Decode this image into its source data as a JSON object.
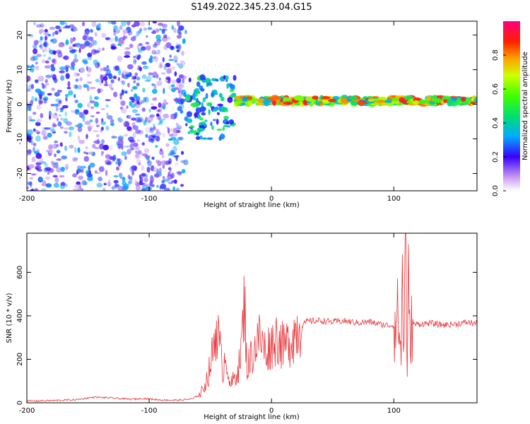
{
  "title": "S149.2022.345.23.04.G15",
  "chart_data": [
    {
      "type": "heatmap",
      "xlabel": "Height of straight line (km)",
      "ylabel": "Frequency (Hz)",
      "xlim": [
        -200,
        168
      ],
      "ylim": [
        -25,
        24
      ],
      "xticks": [
        -200,
        -100,
        0,
        100
      ],
      "yticks": [
        -20,
        -10,
        0,
        10,
        20
      ],
      "colorbar": {
        "label": "Normalized spectral amplitude",
        "range": [
          0,
          1
        ],
        "ticks": [
          "0.0",
          "0.2",
          "0.4",
          "0.6",
          "0.8"
        ],
        "tick_values": [
          0.0,
          0.2,
          0.4,
          0.6,
          0.8
        ]
      },
      "regions": [
        {
          "x": [
            -200,
            -70
          ],
          "freq": [
            -25,
            24
          ],
          "amplitude": [
            0.05,
            0.35
          ],
          "pattern": "noise"
        },
        {
          "x": [
            -70,
            -30
          ],
          "freq": [
            -10,
            8
          ],
          "amplitude": [
            0.2,
            0.5
          ],
          "pattern": "scattered"
        },
        {
          "x": [
            -30,
            168
          ],
          "freq": [
            0,
            2
          ],
          "amplitude": [
            0.3,
            0.95
          ],
          "pattern": "band"
        }
      ]
    },
    {
      "type": "line",
      "xlabel": "Height of straight line (km)",
      "ylabel": "SNR (10 * v/v)",
      "xlim": [
        -200,
        168
      ],
      "ylim": [
        0,
        780
      ],
      "xticks": [
        -200,
        -100,
        0,
        100
      ],
      "yticks": [
        0,
        200,
        400,
        600
      ],
      "color": "#e8383d",
      "series": [
        {
          "x": [
            -200,
            -180,
            -160,
            -145,
            -130,
            -115,
            -105,
            -90,
            -75,
            -65,
            -58,
            -52,
            -48,
            -45,
            -43,
            -40,
            -37,
            -34,
            -30,
            -26,
            -24,
            -22,
            -20,
            -17,
            -14,
            -10,
            -5,
            0,
            5,
            10,
            15,
            20,
            25,
            30,
            40,
            50,
            60,
            70,
            80,
            90,
            100,
            104,
            106,
            107,
            108,
            109,
            110,
            111,
            112,
            113,
            115,
            120,
            130,
            140,
            150,
            160,
            168
          ],
          "y": [
            8,
            10,
            14,
            26,
            22,
            16,
            20,
            13,
            12,
            18,
            40,
            120,
            230,
            360,
            280,
            150,
            240,
            70,
            120,
            180,
            300,
            480,
            150,
            210,
            250,
            300,
            240,
            270,
            310,
            250,
            290,
            330,
            360,
            375,
            378,
            372,
            376,
            368,
            372,
            360,
            355,
            400,
            180,
            700,
            200,
            600,
            760,
            100,
            560,
            300,
            360,
            362,
            366,
            358,
            362,
            370,
            365
          ]
        }
      ]
    }
  ]
}
